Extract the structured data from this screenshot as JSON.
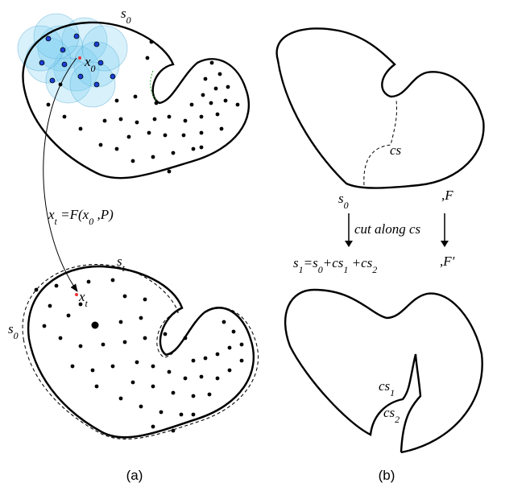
{
  "panel_a": {
    "label": "(a)",
    "top_boundary_label": [
      {
        "t": "s"
      },
      {
        "t": "0",
        "sub": true
      }
    ],
    "top_point_label": [
      {
        "t": "x"
      },
      {
        "t": "0",
        "sub": true
      }
    ],
    "mapping": [
      {
        "t": "x"
      },
      {
        "t": "t",
        "sub": true
      },
      {
        "t": " =F(x"
      },
      {
        "t": "0",
        "sub": true
      },
      {
        "t": " ,P)"
      }
    ],
    "deformed_boundary_label": [
      {
        "t": "s"
      },
      {
        "t": "t",
        "sub": true
      }
    ],
    "original_boundary_label": [
      {
        "t": "s"
      },
      {
        "t": "0",
        "sub": true
      }
    ],
    "bottom_point_label": [
      {
        "t": "x"
      },
      {
        "t": "t",
        "sub": true
      }
    ]
  },
  "panel_b": {
    "label": "(b)",
    "cut_label": [
      {
        "t": "cs"
      }
    ],
    "source_shape": [
      {
        "t": "s"
      },
      {
        "t": "0",
        "sub": true
      }
    ],
    "source_map": [
      {
        "t": ",F"
      }
    ],
    "operation": [
      {
        "t": "cut along cs"
      }
    ],
    "result_shape": [
      {
        "t": "s"
      },
      {
        "t": "1",
        "sub": true
      },
      {
        "t": "=s"
      },
      {
        "t": "0",
        "sub": true
      },
      {
        "t": "+cs"
      },
      {
        "t": "1",
        "sub": true
      },
      {
        "t": " +cs"
      },
      {
        "t": "2",
        "sub": true
      }
    ],
    "result_map": [
      {
        "t": ",F′"
      }
    ],
    "cut_side_1": [
      {
        "t": "cs"
      },
      {
        "t": "1",
        "sub": true
      }
    ],
    "cut_side_2": [
      {
        "t": "cs"
      },
      {
        "t": "2",
        "sub": true
      }
    ]
  }
}
